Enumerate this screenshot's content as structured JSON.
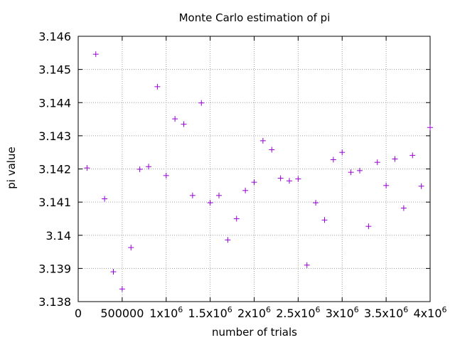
{
  "chart_data": {
    "type": "scatter",
    "title": "Monte Carlo estimation of pi",
    "xlabel": "number of trials",
    "ylabel": "pi value",
    "xlim": [
      0,
      4000000
    ],
    "ylim": [
      3.138,
      3.146
    ],
    "grid": true,
    "legend": "none",
    "marker": "+",
    "marker_color": "#9400d3",
    "x_ticks": [
      {
        "value": 0,
        "label": "0"
      },
      {
        "value": 500000,
        "label": "500000"
      },
      {
        "value": 1000000,
        "label": "1x10",
        "sup": "6"
      },
      {
        "value": 1500000,
        "label": "1.5x10",
        "sup": "6"
      },
      {
        "value": 2000000,
        "label": "2x10",
        "sup": "6"
      },
      {
        "value": 2500000,
        "label": "2.5x10",
        "sup": "6"
      },
      {
        "value": 3000000,
        "label": "3x10",
        "sup": "6"
      },
      {
        "value": 3500000,
        "label": "3.5x10",
        "sup": "6"
      },
      {
        "value": 4000000,
        "label": "4x10",
        "sup": "6"
      }
    ],
    "y_ticks": [
      {
        "value": 3.138,
        "label": "3.138"
      },
      {
        "value": 3.139,
        "label": "3.139"
      },
      {
        "value": 3.14,
        "label": "3.14"
      },
      {
        "value": 3.141,
        "label": "3.141"
      },
      {
        "value": 3.142,
        "label": "3.142"
      },
      {
        "value": 3.143,
        "label": "3.143"
      },
      {
        "value": 3.144,
        "label": "3.144"
      },
      {
        "value": 3.145,
        "label": "3.145"
      },
      {
        "value": 3.146,
        "label": "3.146"
      }
    ],
    "points": [
      {
        "x": 100000,
        "y": 3.14203
      },
      {
        "x": 200000,
        "y": 3.14546
      },
      {
        "x": 300000,
        "y": 3.1411
      },
      {
        "x": 400000,
        "y": 3.1389
      },
      {
        "x": 500000,
        "y": 3.13838
      },
      {
        "x": 600000,
        "y": 3.13963
      },
      {
        "x": 700000,
        "y": 3.14199
      },
      {
        "x": 800000,
        "y": 3.14207
      },
      {
        "x": 900000,
        "y": 3.14448
      },
      {
        "x": 1000000,
        "y": 3.1418
      },
      {
        "x": 1100000,
        "y": 3.14351
      },
      {
        "x": 1200000,
        "y": 3.14335
      },
      {
        "x": 1300000,
        "y": 3.1412
      },
      {
        "x": 1400000,
        "y": 3.14399
      },
      {
        "x": 1500000,
        "y": 3.14098
      },
      {
        "x": 1600000,
        "y": 3.1412
      },
      {
        "x": 1700000,
        "y": 3.13986
      },
      {
        "x": 1800000,
        "y": 3.1405
      },
      {
        "x": 1900000,
        "y": 3.14135
      },
      {
        "x": 2000000,
        "y": 3.1416
      },
      {
        "x": 2100000,
        "y": 3.14285
      },
      {
        "x": 2200000,
        "y": 3.14258
      },
      {
        "x": 2300000,
        "y": 3.14172
      },
      {
        "x": 2400000,
        "y": 3.14164
      },
      {
        "x": 2500000,
        "y": 3.1417
      },
      {
        "x": 2600000,
        "y": 3.1391
      },
      {
        "x": 2700000,
        "y": 3.14098
      },
      {
        "x": 2800000,
        "y": 3.14046
      },
      {
        "x": 2900000,
        "y": 3.14228
      },
      {
        "x": 3000000,
        "y": 3.1425
      },
      {
        "x": 3100000,
        "y": 3.1419
      },
      {
        "x": 3200000,
        "y": 3.14195
      },
      {
        "x": 3300000,
        "y": 3.14027
      },
      {
        "x": 3400000,
        "y": 3.1422
      },
      {
        "x": 3500000,
        "y": 3.1415
      },
      {
        "x": 3600000,
        "y": 3.1423
      },
      {
        "x": 3700000,
        "y": 3.14082
      },
      {
        "x": 3800000,
        "y": 3.14241
      },
      {
        "x": 3900000,
        "y": 3.14148
      },
      {
        "x": 4000000,
        "y": 3.14325
      }
    ]
  }
}
